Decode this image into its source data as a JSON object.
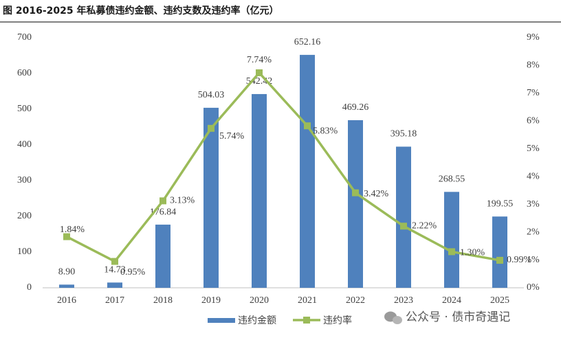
{
  "chart_data": {
    "type": "bar-line",
    "title": "图  2016-2025 年私募债违约金额、违约支数及违约率（亿元）",
    "categories": [
      "2016",
      "2017",
      "2018",
      "2019",
      "2020",
      "2021",
      "2022",
      "2023",
      "2024",
      "2025"
    ],
    "series": [
      {
        "name": "违约金额",
        "type": "bar",
        "color": "#4f81bd",
        "values": [
          8.9,
          14.73,
          176.84,
          504.03,
          542.42,
          652.16,
          469.26,
          395.18,
          268.55,
          199.55
        ],
        "value_labels": [
          "8.90",
          "14.73",
          "176.84",
          "504.03",
          "542.42",
          "652.16",
          "469.26",
          "395.18",
          "268.55",
          "199.55"
        ]
      },
      {
        "name": "违约率",
        "type": "line",
        "axis": "y2",
        "color": "#9bbb59",
        "values": [
          1.84,
          0.95,
          3.13,
          5.74,
          7.74,
          5.83,
          3.42,
          2.22,
          1.3,
          0.99
        ],
        "value_labels": [
          "1.84%",
          "0.95%",
          "3.13%",
          "5.74%",
          "7.74%",
          "5.83%",
          "3.42%",
          "2.22%",
          "1.30%",
          "0.99%"
        ]
      }
    ],
    "ylim": [
      0,
      700
    ],
    "yticks": [
      0,
      100,
      200,
      300,
      400,
      500,
      600,
      700
    ],
    "y2lim": [
      0,
      9
    ],
    "y2ticks": [
      {
        "value": 0,
        "label": "0%"
      },
      {
        "value": 1,
        "label": "1%"
      },
      {
        "value": 2,
        "label": "2%"
      },
      {
        "value": 3,
        "label": "3%"
      },
      {
        "value": 4,
        "label": "4%"
      },
      {
        "value": 5,
        "label": "5%"
      },
      {
        "value": 6,
        "label": "6%"
      },
      {
        "value": 7,
        "label": "7%"
      },
      {
        "value": 8,
        "label": "8%"
      },
      {
        "value": 9,
        "label": "9%"
      }
    ],
    "legend": "bottom",
    "watermark": "公众号 · 债市奇遇记"
  }
}
